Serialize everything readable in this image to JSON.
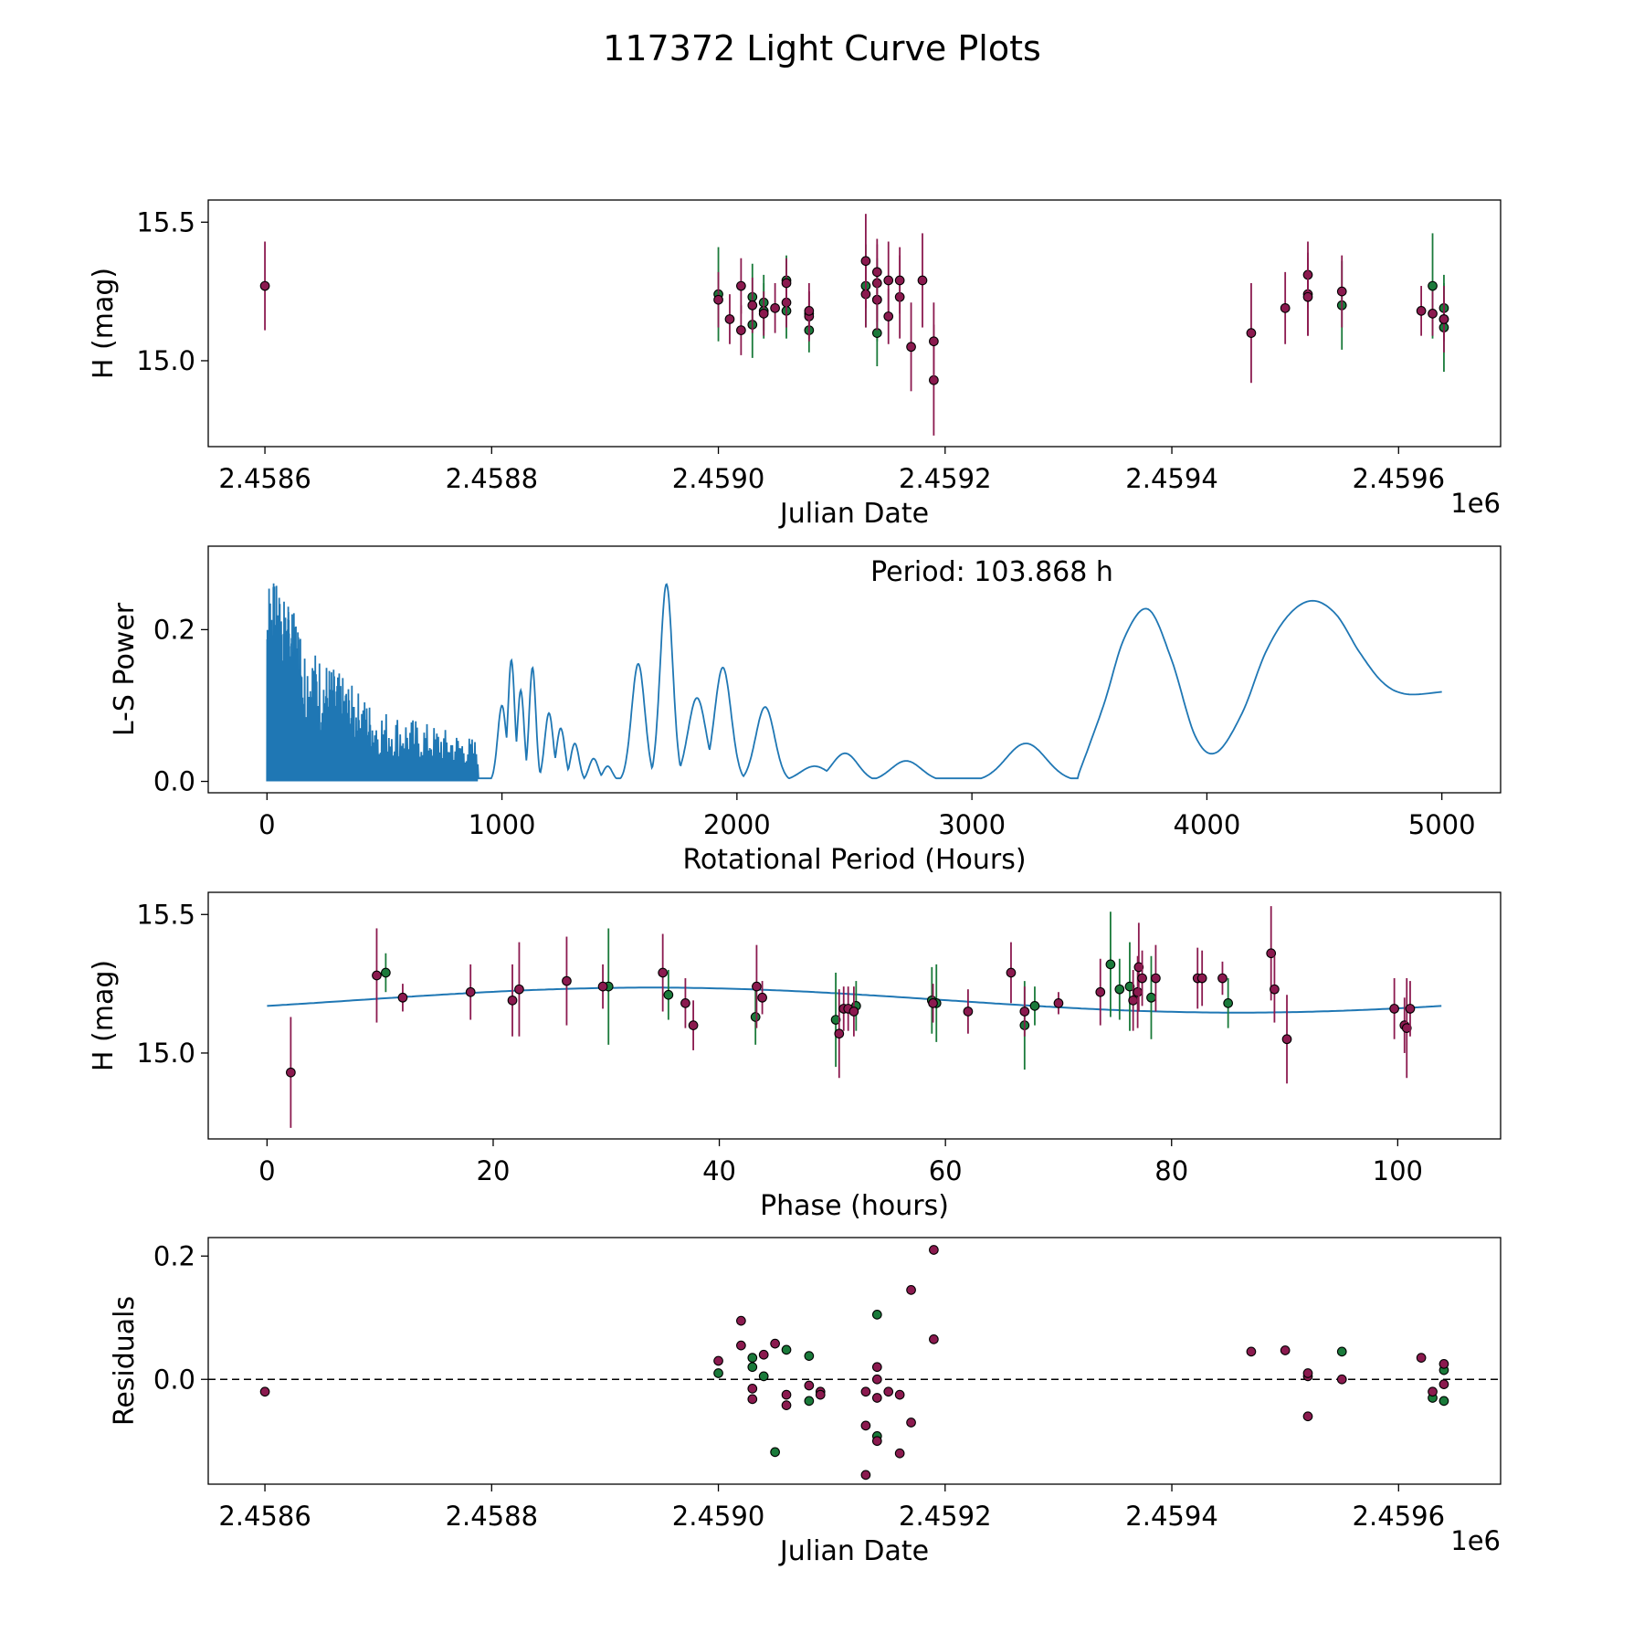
{
  "title": "117372 Light Curve Plots",
  "colors": {
    "green": "#1a7a3a",
    "maroon": "#8b1a4f",
    "curve": "#1f77b4",
    "frame": "#000000"
  },
  "chart_data": [
    {
      "id": "lightcurve",
      "type": "scatter",
      "xlabel": "Julian Date",
      "ylabel": "H (mag)",
      "offset_label": "1e6",
      "xlim": [
        2.45855,
        2.45969
      ],
      "ylim": [
        14.69,
        15.58
      ],
      "xticks": [
        2.4586,
        2.4588,
        2.459,
        2.4592,
        2.4594,
        2.4596
      ],
      "xtick_labels": [
        "2.4586",
        "2.4588",
        "2.4590",
        "2.4592",
        "2.4594",
        "2.4596"
      ],
      "yticks": [
        15.0,
        15.5
      ],
      "ytick_labels": [
        "15.0",
        "15.5"
      ],
      "series": [
        {
          "name": "green",
          "color": "green",
          "points": [
            [
              2.459,
              15.24,
              0.17
            ],
            [
              2.45903,
              15.23,
              0.12
            ],
            [
              2.45903,
              15.13,
              0.12
            ],
            [
              2.45904,
              15.18,
              0.1
            ],
            [
              2.45904,
              15.21,
              0.1
            ],
            [
              2.45906,
              15.29,
              0.09
            ],
            [
              2.45906,
              15.18,
              0.1
            ],
            [
              2.45908,
              15.11,
              0.08
            ],
            [
              2.45913,
              15.27,
              0.15
            ],
            [
              2.45914,
              15.22,
              0.15
            ],
            [
              2.45914,
              15.1,
              0.12
            ],
            [
              2.45955,
              15.2,
              0.16
            ],
            [
              2.45963,
              15.27,
              0.19
            ],
            [
              2.45964,
              15.19,
              0.12
            ],
            [
              2.45964,
              15.12,
              0.16
            ]
          ]
        },
        {
          "name": "maroon",
          "color": "maroon",
          "points": [
            [
              2.4586,
              15.27,
              0.16
            ],
            [
              2.459,
              15.22,
              0.1
            ],
            [
              2.45901,
              15.15,
              0.09
            ],
            [
              2.45902,
              15.11,
              0.09
            ],
            [
              2.45902,
              15.27,
              0.1
            ],
            [
              2.45903,
              15.2,
              0.1
            ],
            [
              2.45904,
              15.17,
              0.08
            ],
            [
              2.45905,
              15.19,
              0.09
            ],
            [
              2.45906,
              15.21,
              0.09
            ],
            [
              2.45906,
              15.28,
              0.09
            ],
            [
              2.45908,
              15.17,
              0.08
            ],
            [
              2.45908,
              15.16,
              0.09
            ],
            [
              2.45908,
              15.18,
              0.1
            ],
            [
              2.45913,
              15.24,
              0.12
            ],
            [
              2.45913,
              15.36,
              0.17
            ],
            [
              2.45914,
              15.28,
              0.14
            ],
            [
              2.45914,
              15.22,
              0.11
            ],
            [
              2.45914,
              15.32,
              0.12
            ],
            [
              2.45915,
              15.29,
              0.14
            ],
            [
              2.45915,
              15.16,
              0.1
            ],
            [
              2.45916,
              15.23,
              0.15
            ],
            [
              2.45916,
              15.29,
              0.12
            ],
            [
              2.45917,
              15.05,
              0.16
            ],
            [
              2.45918,
              15.29,
              0.17
            ],
            [
              2.45919,
              14.93,
              0.2
            ],
            [
              2.45919,
              15.07,
              0.14
            ],
            [
              2.45947,
              15.1,
              0.18
            ],
            [
              2.4595,
              15.19,
              0.13
            ],
            [
              2.45952,
              15.24,
              0.15
            ],
            [
              2.45952,
              15.31,
              0.12
            ],
            [
              2.45952,
              15.23,
              0.14
            ],
            [
              2.45955,
              15.25,
              0.13
            ],
            [
              2.45962,
              15.18,
              0.09
            ],
            [
              2.45963,
              15.17,
              0.08
            ],
            [
              2.45964,
              15.15,
              0.08
            ],
            [
              2.45964,
              15.15,
              0.12
            ]
          ]
        }
      ]
    },
    {
      "id": "periodogram",
      "type": "line",
      "xlabel": "Rotational Period (Hours)",
      "ylabel": "L-S Power",
      "annotation": "Period: 103.868 h",
      "xlim": [
        -250,
        5250
      ],
      "ylim": [
        -0.015,
        0.31
      ],
      "xticks": [
        0,
        1000,
        2000,
        3000,
        4000,
        5000
      ],
      "xtick_labels": [
        "0",
        "1000",
        "2000",
        "3000",
        "4000",
        "5000"
      ],
      "yticks": [
        0.0,
        0.2
      ],
      "ytick_labels": [
        "0.0",
        "0.2"
      ],
      "peaks": [
        [
          1000,
          0.1,
          18
        ],
        [
          1040,
          0.16,
          14
        ],
        [
          1080,
          0.12,
          14
        ],
        [
          1130,
          0.15,
          14
        ],
        [
          1200,
          0.09,
          18
        ],
        [
          1250,
          0.07,
          18
        ],
        [
          1310,
          0.05,
          18
        ],
        [
          1390,
          0.03,
          20
        ],
        [
          1450,
          0.02,
          20
        ],
        [
          1580,
          0.155,
          28
        ],
        [
          1700,
          0.26,
          26
        ],
        [
          1830,
          0.11,
          38
        ],
        [
          1940,
          0.15,
          35
        ],
        [
          2120,
          0.098,
          40
        ],
        [
          2330,
          0.02,
          60
        ],
        [
          2460,
          0.037,
          55
        ],
        [
          2720,
          0.027,
          65
        ],
        [
          3230,
          0.05,
          85
        ]
      ],
      "tail": [
        [
          3450,
          0.006
        ],
        [
          3560,
          0.1
        ],
        [
          3650,
          0.19
        ],
        [
          3750,
          0.227
        ],
        [
          3850,
          0.16
        ],
        [
          3950,
          0.06
        ],
        [
          4040,
          0.038
        ],
        [
          4150,
          0.09
        ],
        [
          4250,
          0.17
        ],
        [
          4350,
          0.22
        ],
        [
          4450,
          0.238
        ],
        [
          4550,
          0.22
        ],
        [
          4650,
          0.17
        ],
        [
          4750,
          0.13
        ],
        [
          4850,
          0.115
        ],
        [
          5000,
          0.118
        ]
      ]
    },
    {
      "id": "phased",
      "type": "scatter",
      "xlabel": "Phase (hours)",
      "ylabel": "H (mag)",
      "xlim": [
        -5.2,
        109.1
      ],
      "ylim": [
        14.69,
        15.58
      ],
      "xticks": [
        0,
        20,
        40,
        60,
        80,
        100
      ],
      "xtick_labels": [
        "0",
        "20",
        "40",
        "60",
        "80",
        "100"
      ],
      "yticks": [
        15.0,
        15.5
      ],
      "ytick_labels": [
        "15.0",
        "15.5"
      ],
      "fit": {
        "mean": 15.191,
        "period": 103.868,
        "terms": [
          [
            -0.021,
            0.04,
            -0.044,
            0.0
          ]
        ]
      },
      "series": [
        {
          "name": "green",
          "color": "green",
          "points": [
            [
              10.5,
              15.29,
              0.07
            ],
            [
              30.2,
              15.24,
              0.21
            ],
            [
              35.5,
              15.21,
              0.09
            ],
            [
              43.2,
              15.13,
              0.1
            ],
            [
              50.3,
              15.12,
              0.17
            ],
            [
              52.1,
              15.17,
              0.09
            ],
            [
              58.8,
              15.19,
              0.12
            ],
            [
              59.2,
              15.18,
              0.14
            ],
            [
              67.0,
              15.1,
              0.16
            ],
            [
              67.9,
              15.17,
              0.07
            ],
            [
              74.6,
              15.32,
              0.19
            ],
            [
              75.4,
              15.23,
              0.11
            ],
            [
              76.3,
              15.24,
              0.16
            ],
            [
              78.2,
              15.2,
              0.15
            ],
            [
              85.0,
              15.18,
              0.09
            ]
          ]
        },
        {
          "name": "maroon",
          "color": "maroon",
          "points": [
            [
              2.1,
              14.93,
              0.2
            ],
            [
              9.7,
              15.28,
              0.17
            ],
            [
              12.0,
              15.2,
              0.05
            ],
            [
              18.0,
              15.22,
              0.1
            ],
            [
              21.7,
              15.19,
              0.13
            ],
            [
              22.3,
              15.23,
              0.17
            ],
            [
              26.5,
              15.26,
              0.16
            ],
            [
              29.7,
              15.24,
              0.08
            ],
            [
              35.0,
              15.29,
              0.14
            ],
            [
              37.0,
              15.18,
              0.09
            ],
            [
              37.7,
              15.1,
              0.09
            ],
            [
              43.3,
              15.24,
              0.15
            ],
            [
              43.8,
              15.2,
              0.06
            ],
            [
              50.6,
              15.07,
              0.16
            ],
            [
              51.0,
              15.16,
              0.08
            ],
            [
              51.4,
              15.16,
              0.08
            ],
            [
              51.9,
              15.15,
              0.09
            ],
            [
              58.9,
              15.18,
              0.07
            ],
            [
              62.0,
              15.15,
              0.08
            ],
            [
              65.8,
              15.29,
              0.11
            ],
            [
              67.0,
              15.15,
              0.09
            ],
            [
              70.0,
              15.18,
              0.04
            ],
            [
              73.7,
              15.22,
              0.12
            ],
            [
              76.6,
              15.19,
              0.11
            ],
            [
              77.0,
              15.22,
              0.13
            ],
            [
              77.1,
              15.31,
              0.16
            ],
            [
              77.4,
              15.27,
              0.1
            ],
            [
              78.6,
              15.27,
              0.12
            ],
            [
              82.3,
              15.27,
              0.11
            ],
            [
              82.7,
              15.27,
              0.1
            ],
            [
              84.5,
              15.27,
              0.06
            ],
            [
              88.8,
              15.36,
              0.17
            ],
            [
              89.1,
              15.23,
              0.12
            ],
            [
              90.2,
              15.05,
              0.16
            ],
            [
              99.7,
              15.16,
              0.11
            ],
            [
              100.6,
              15.1,
              0.1
            ],
            [
              100.8,
              15.09,
              0.18
            ],
            [
              101.1,
              15.16,
              0.1
            ]
          ]
        }
      ]
    },
    {
      "id": "residuals",
      "type": "scatter",
      "xlabel": "Julian Date",
      "ylabel": "Residuals",
      "offset_label": "1e6",
      "xlim": [
        2.45855,
        2.45969
      ],
      "ylim": [
        -0.17,
        0.23
      ],
      "xticks": [
        2.4586,
        2.4588,
        2.459,
        2.4592,
        2.4594,
        2.4596
      ],
      "xtick_labels": [
        "2.4586",
        "2.4588",
        "2.4590",
        "2.4592",
        "2.4594",
        "2.4596"
      ],
      "yticks": [
        0.0,
        0.2
      ],
      "ytick_labels": [
        "0.0",
        "0.2"
      ],
      "zero_line": 0.0,
      "series": [
        {
          "name": "green",
          "color": "green",
          "points": [
            [
              2.459,
              0.01
            ],
            [
              2.45903,
              0.02
            ],
            [
              2.45903,
              0.035
            ],
            [
              2.45904,
              0.005
            ],
            [
              2.45905,
              -0.118
            ],
            [
              2.45906,
              0.048
            ],
            [
              2.45908,
              0.038
            ],
            [
              2.45908,
              -0.035
            ],
            [
              2.45914,
              -0.092
            ],
            [
              2.45914,
              0.105
            ],
            [
              2.45955,
              0.045
            ],
            [
              2.45963,
              -0.03
            ],
            [
              2.45964,
              -0.035
            ],
            [
              2.45964,
              0.015
            ]
          ]
        },
        {
          "name": "maroon",
          "color": "maroon",
          "points": [
            [
              2.4586,
              -0.02
            ],
            [
              2.459,
              0.03
            ],
            [
              2.45902,
              0.055
            ],
            [
              2.45902,
              0.095
            ],
            [
              2.45903,
              -0.015
            ],
            [
              2.45903,
              -0.032
            ],
            [
              2.45904,
              0.04
            ],
            [
              2.45905,
              0.058
            ],
            [
              2.45906,
              -0.025
            ],
            [
              2.45906,
              -0.042
            ],
            [
              2.45908,
              -0.01
            ],
            [
              2.45909,
              -0.02
            ],
            [
              2.45909,
              -0.025
            ],
            [
              2.45913,
              -0.075
            ],
            [
              2.45913,
              -0.155
            ],
            [
              2.45913,
              -0.02
            ],
            [
              2.45914,
              -0.03
            ],
            [
              2.45914,
              0.02
            ],
            [
              2.45914,
              0.0
            ],
            [
              2.45914,
              -0.1
            ],
            [
              2.45915,
              -0.02
            ],
            [
              2.45916,
              -0.025
            ],
            [
              2.45916,
              -0.12
            ],
            [
              2.45917,
              0.145
            ],
            [
              2.45917,
              -0.07
            ],
            [
              2.45919,
              0.21
            ],
            [
              2.45919,
              0.065
            ],
            [
              2.45947,
              0.045
            ],
            [
              2.4595,
              0.047
            ],
            [
              2.45952,
              0.005
            ],
            [
              2.45952,
              0.01
            ],
            [
              2.45952,
              -0.06
            ],
            [
              2.45955,
              0.0
            ],
            [
              2.45962,
              0.035
            ],
            [
              2.45963,
              -0.02
            ],
            [
              2.45964,
              0.025
            ],
            [
              2.45964,
              -0.008
            ]
          ]
        }
      ]
    }
  ]
}
